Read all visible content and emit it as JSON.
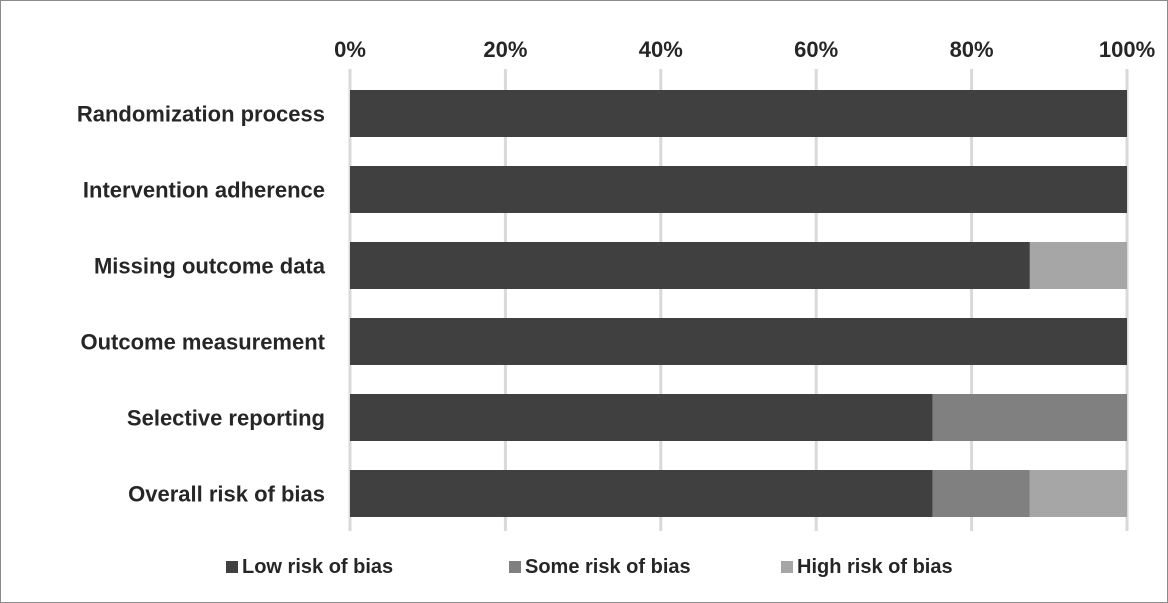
{
  "chart_data": {
    "type": "bar",
    "orientation": "horizontal",
    "stacked": true,
    "percent": true,
    "title": "",
    "xlabel": "",
    "ylabel": "",
    "xlim": [
      0,
      100
    ],
    "x_ticks": [
      "0%",
      "20%",
      "40%",
      "60%",
      "80%",
      "100%"
    ],
    "x_tick_values": [
      0,
      20,
      40,
      60,
      80,
      100
    ],
    "x_axis_position": "top",
    "grid": true,
    "legend_position": "bottom",
    "categories": [
      "Randomization process",
      "Intervention adherence",
      "Missing outcome data",
      "Outcome measurement",
      "Selective reporting",
      "Overall risk of bias"
    ],
    "series": [
      {
        "name": "Low risk of bias",
        "color": "#404040",
        "values": [
          100,
          100,
          87.5,
          100,
          75,
          75
        ]
      },
      {
        "name": "Some risk of bias",
        "color": "#808080",
        "values": [
          0,
          0,
          0,
          0,
          25,
          12.5
        ]
      },
      {
        "name": "High risk of bias",
        "color": "#a6a6a6",
        "values": [
          0,
          0,
          12.5,
          0,
          0,
          12.5
        ]
      }
    ]
  },
  "colors": {
    "gridline": "#d9d9d9",
    "text": "#262626",
    "frame": "#8c8c8c"
  }
}
